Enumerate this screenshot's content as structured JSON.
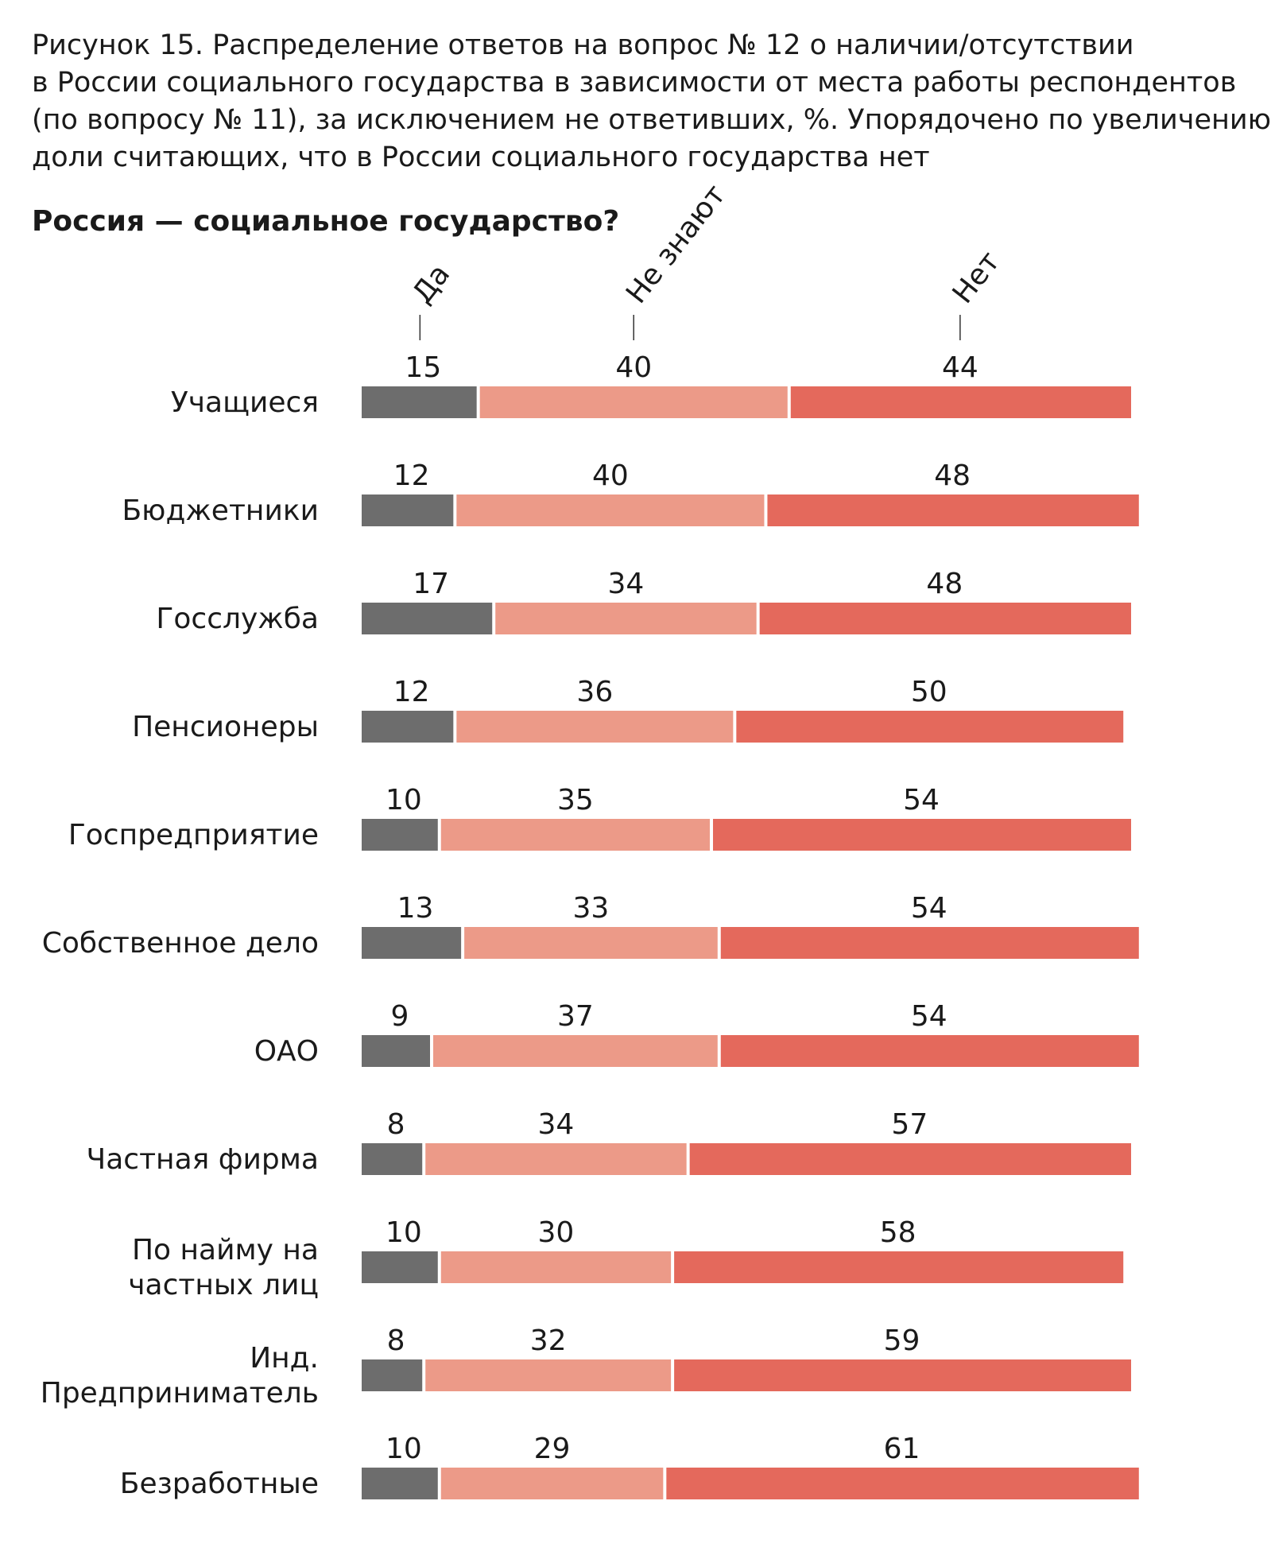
{
  "caption": [
    "Рисунок 15. Распределение ответов на вопрос № 12 о наличии/отсутствии",
    "в России социального государства в зависимости от места работы респондентов",
    "(по вопросу № 11), за исключением не ответивших, %. Упорядочено по увеличению",
    "доли считающих, что в России социального государства нет"
  ],
  "chart_data": {
    "type": "bar",
    "stacked": true,
    "orientation": "horizontal",
    "title": "Россия — социальное государство?",
    "categories": [
      "Учащиеся",
      "Бюджетники",
      "Госслужба",
      "Пенсионеры",
      "Госпредприятие",
      "Собственное дело",
      "ОАО",
      "Частная фирма",
      "По найму на частных лиц",
      "Инд. Предприниматель",
      "Безработные"
    ],
    "series": [
      {
        "name": "Да",
        "color": "#6d6d6d",
        "values": [
          15,
          12,
          17,
          12,
          10,
          13,
          9,
          8,
          10,
          8,
          10
        ]
      },
      {
        "name": "Не знают",
        "color": "#ec9a88",
        "values": [
          40,
          40,
          34,
          36,
          35,
          33,
          37,
          34,
          30,
          32,
          29
        ]
      },
      {
        "name": "Нет",
        "color": "#e4695c",
        "values": [
          44,
          48,
          48,
          50,
          54,
          54,
          54,
          57,
          58,
          59,
          61
        ]
      }
    ],
    "xlim": [
      0,
      99
    ],
    "legend": "top, rotated labels above first bar",
    "grid": false
  }
}
